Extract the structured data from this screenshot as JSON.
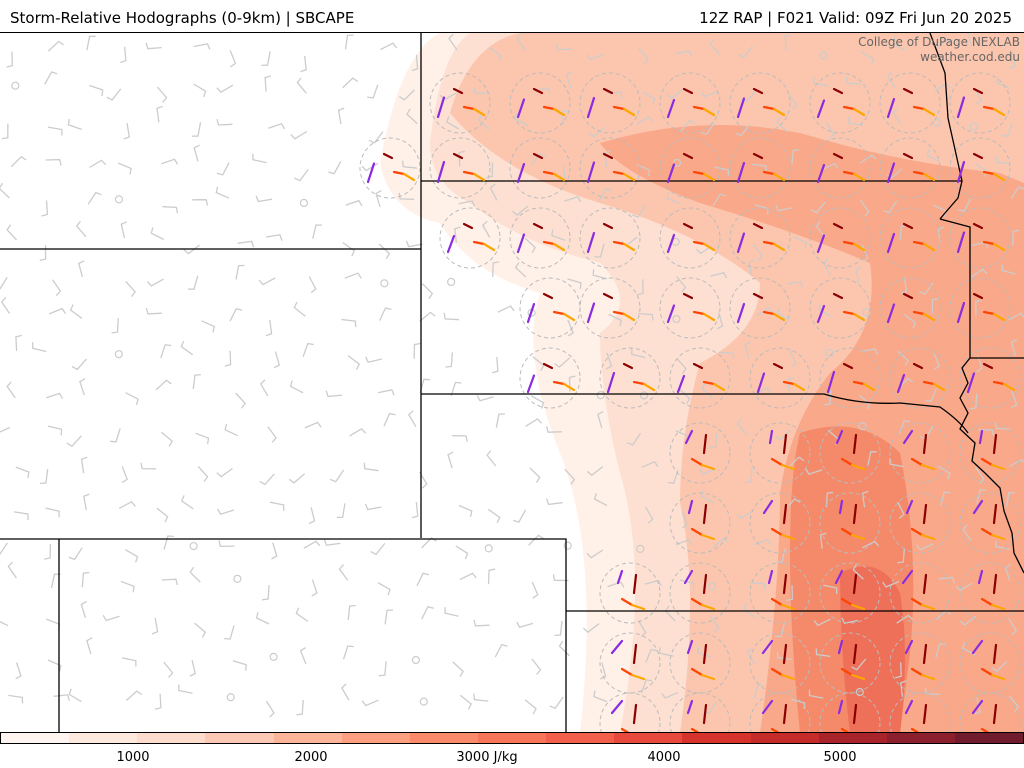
{
  "header": {
    "left": "Storm-Relative Hodographs (0-9km) | SBCAPE",
    "right": "12Z RAP | F021 Valid: 09Z Fri Jun 20 2025"
  },
  "credit": {
    "line1": "College of DuPage NEXLAB",
    "line2": "weather.cod.edu"
  },
  "colorbar": {
    "ticks": [
      "1000",
      "2000",
      "3000 J/kg",
      "4000",
      "5000"
    ],
    "colors": [
      "#fff5f0",
      "#fee9df",
      "#fedccd",
      "#fdc9b4",
      "#fcb599",
      "#fca081",
      "#fb8a6a",
      "#f87558",
      "#f25f4b",
      "#e8493d",
      "#d7332d",
      "#c42b29",
      "#a9232a",
      "#8c1f2e",
      "#701b2e"
    ]
  },
  "map_style": {
    "boundary_color": "#000000",
    "barb_color": "#cccccc",
    "hodo_colors": [
      "#8a2be2",
      "#8b0000",
      "#ff4500",
      "#ffa500"
    ],
    "cape_colors": [
      "#fff0e8",
      "#fde0d2",
      "#fcc6ae",
      "#f9a88a",
      "#f58a6a",
      "#ee7058"
    ]
  }
}
